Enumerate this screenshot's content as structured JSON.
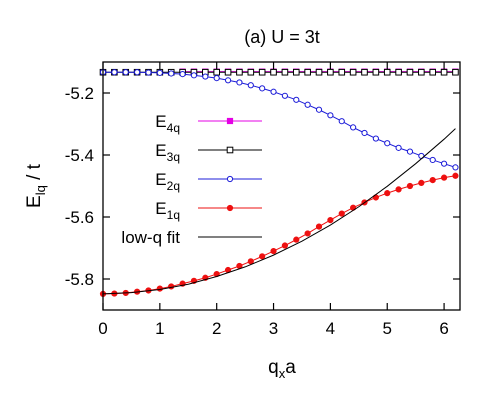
{
  "chart_data": {
    "type": "line",
    "title": "(a) U = 3t",
    "xlabel": {
      "main": "q",
      "sub": "x",
      "tail": "a"
    },
    "ylabel": {
      "main": "E",
      "sub": "lq",
      "tail": " / t"
    },
    "xlim": [
      0,
      6.28
    ],
    "ylim": [
      -5.9,
      -5.1
    ],
    "xticks": [
      0,
      1,
      2,
      3,
      4,
      5,
      6
    ],
    "xtick_labels": [
      "0",
      "1",
      "2",
      "3",
      "4",
      "5",
      "6"
    ],
    "yticks": [
      -5.8,
      -5.6,
      -5.4,
      -5.2
    ],
    "ytick_labels": [
      "-5.8",
      "-5.6",
      "-5.4",
      "-5.2"
    ],
    "grid": false,
    "legend_position": "center-left",
    "series": [
      {
        "name": {
          "main": "E",
          "sub": "4q"
        },
        "color": "#e400e4",
        "marker": "square-filled",
        "line": true,
        "x": [
          1.4,
          1.6,
          1.8,
          2.0,
          2.2,
          2.4,
          2.6,
          2.8,
          3.0,
          3.2,
          3.4,
          3.6,
          3.8,
          4.0,
          4.2,
          4.4,
          4.6,
          4.8,
          5.0,
          5.2,
          5.4,
          5.6,
          5.8,
          6.0,
          6.2
        ],
        "y": [
          -5.131,
          -5.131,
          -5.131,
          -5.131,
          -5.131,
          -5.131,
          -5.131,
          -5.131,
          -5.131,
          -5.131,
          -5.131,
          -5.131,
          -5.131,
          -5.131,
          -5.131,
          -5.131,
          -5.131,
          -5.131,
          -5.131,
          -5.131,
          -5.131,
          -5.131,
          -5.131,
          -5.131,
          -5.131
        ]
      },
      {
        "name": {
          "main": "E",
          "sub": "3q"
        },
        "color": "#000000",
        "marker": "square-open",
        "line": true,
        "x": [
          0.0,
          0.2,
          0.4,
          0.6,
          0.8,
          1.0,
          1.2,
          1.4,
          1.6,
          1.8,
          2.0,
          2.2,
          2.4,
          2.6,
          2.8,
          3.0,
          3.2,
          3.4,
          3.6,
          3.8,
          4.0,
          4.2,
          4.4,
          4.6,
          4.8,
          5.0,
          5.2,
          5.4,
          5.6,
          5.8,
          6.0,
          6.2
        ],
        "y": [
          -5.133,
          -5.133,
          -5.133,
          -5.133,
          -5.133,
          -5.133,
          -5.133,
          -5.133,
          -5.133,
          -5.133,
          -5.133,
          -5.133,
          -5.133,
          -5.133,
          -5.133,
          -5.133,
          -5.133,
          -5.133,
          -5.133,
          -5.133,
          -5.133,
          -5.133,
          -5.133,
          -5.133,
          -5.133,
          -5.133,
          -5.133,
          -5.133,
          -5.133,
          -5.133,
          -5.133,
          -5.133
        ]
      },
      {
        "name": {
          "main": "E",
          "sub": "2q"
        },
        "color": "#1c1cd8",
        "marker": "circle-open",
        "line": true,
        "x": [
          0.0,
          0.2,
          0.4,
          0.6,
          0.8,
          1.0,
          1.2,
          1.4,
          1.6,
          1.8,
          2.0,
          2.2,
          2.4,
          2.6,
          2.8,
          3.0,
          3.2,
          3.4,
          3.6,
          3.8,
          4.0,
          4.2,
          4.4,
          4.6,
          4.8,
          5.0,
          5.2,
          5.4,
          5.6,
          5.8,
          6.0,
          6.2
        ],
        "y": [
          -5.133,
          -5.133,
          -5.133,
          -5.133,
          -5.134,
          -5.135,
          -5.137,
          -5.139,
          -5.143,
          -5.147,
          -5.152,
          -5.159,
          -5.166,
          -5.175,
          -5.185,
          -5.196,
          -5.209,
          -5.222,
          -5.238,
          -5.254,
          -5.272,
          -5.291,
          -5.311,
          -5.329,
          -5.347,
          -5.362,
          -5.377,
          -5.389,
          -5.403,
          -5.416,
          -5.428,
          -5.44
        ]
      },
      {
        "name": {
          "main": "E",
          "sub": "1q"
        },
        "color": "#ee1010",
        "marker": "circle-filled",
        "line": true,
        "x": [
          0.0,
          0.2,
          0.4,
          0.6,
          0.8,
          1.0,
          1.2,
          1.4,
          1.6,
          1.8,
          2.0,
          2.2,
          2.4,
          2.6,
          2.8,
          3.0,
          3.2,
          3.4,
          3.6,
          3.8,
          4.0,
          4.2,
          4.4,
          4.6,
          4.8,
          5.0,
          5.2,
          5.4,
          5.6,
          5.8,
          6.0,
          6.2
        ],
        "y": [
          -5.848,
          -5.847,
          -5.845,
          -5.841,
          -5.837,
          -5.831,
          -5.824,
          -5.815,
          -5.806,
          -5.796,
          -5.784,
          -5.771,
          -5.758,
          -5.743,
          -5.727,
          -5.71,
          -5.692,
          -5.673,
          -5.653,
          -5.631,
          -5.61,
          -5.589,
          -5.57,
          -5.553,
          -5.537,
          -5.523,
          -5.511,
          -5.5,
          -5.49,
          -5.481,
          -5.473,
          -5.467
        ]
      },
      {
        "name": {
          "main": "low-q fit",
          "sub": ""
        },
        "color": "#000000",
        "marker": "none",
        "line": true,
        "x": [
          0.0,
          0.5,
          1.0,
          1.5,
          2.0,
          2.5,
          3.0,
          3.5,
          4.0,
          4.5,
          5.0,
          5.5,
          6.0,
          6.2
        ],
        "y": [
          -5.848,
          -5.844,
          -5.834,
          -5.817,
          -5.792,
          -5.761,
          -5.723,
          -5.678,
          -5.626,
          -5.567,
          -5.501,
          -5.428,
          -5.349,
          -5.315
        ]
      }
    ]
  }
}
